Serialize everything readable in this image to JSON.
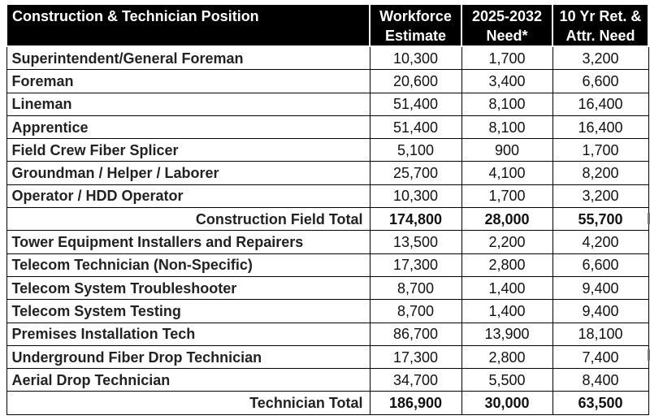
{
  "header": {
    "position": "Construction & Technician Position",
    "workforce_line1": "Workforce",
    "workforce_line2": "Estimate",
    "need_line1": "2025-2032",
    "need_line2": "Need*",
    "retention_line1": "10 Yr Ret. &",
    "retention_line2": "Attr. Need"
  },
  "rows": [
    {
      "position": "Superintendent/General Foreman",
      "workforce": "10,300",
      "need": "1,700",
      "retention": "3,200"
    },
    {
      "position": "Foreman",
      "workforce": "20,600",
      "need": "3,400",
      "retention": "6,600"
    },
    {
      "position": "Lineman",
      "workforce": "51,400",
      "need": "8,100",
      "retention": "16,400"
    },
    {
      "position": "Apprentice",
      "workforce": "51,400",
      "need": "8,100",
      "retention": "16,400"
    },
    {
      "position": "Field Crew Fiber Splicer",
      "workforce": "5,100",
      "need": "900",
      "retention": "1,700"
    },
    {
      "position": "Groundman / Helper / Laborer",
      "workforce": "25,700",
      "need": "4,100",
      "retention": "8,200"
    },
    {
      "position": "Operator / HDD Operator",
      "workforce": "10,300",
      "need": "1,700",
      "retention": "3,200"
    },
    {
      "position": "Construction Field Total",
      "workforce": "174,800",
      "need": "28,000",
      "retention": "55,700"
    },
    {
      "position": "Tower Equipment Installers and Repairers",
      "workforce": "13,500",
      "need": "2,200",
      "retention": "4,200"
    },
    {
      "position": "Telecom Technician (Non-Specific)",
      "workforce": "17,300",
      "need": "2,800",
      "retention": "6,600"
    },
    {
      "position": "Telecom System Troubleshooter",
      "workforce": "8,700",
      "need": "1,400",
      "retention": "9,400"
    },
    {
      "position": "Telecom System Testing",
      "workforce": "8,700",
      "need": "1,400",
      "retention": "9,400"
    },
    {
      "position": "Premises Installation Tech",
      "workforce": "86,700",
      "need": "13,900",
      "retention": "18,100"
    },
    {
      "position": "Underground Fiber Drop Technician",
      "workforce": "17,300",
      "need": "2,800",
      "retention": "7,400"
    },
    {
      "position": "Aerial Drop Technician",
      "workforce": "34,700",
      "need": "5,500",
      "retention": "8,400"
    },
    {
      "position": "Technician Total",
      "workforce": "186,900",
      "need": "30,000",
      "retention": "63,500"
    }
  ]
}
